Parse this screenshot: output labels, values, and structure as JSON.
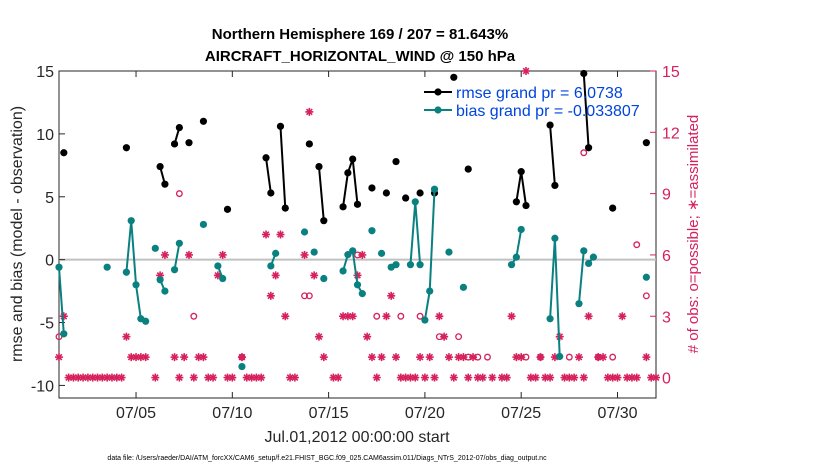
{
  "chart_data": {
    "type": "line",
    "title_line1": "Northern Hemisphere 169 / 207 = 81.643%",
    "title_line2": "AIRCRAFT_HORIZONTAL_WIND @ 150 hPa",
    "xlabel": "Jul.01,2012 00:00:00 start",
    "ylabel_left": "rmse and bias (model - observation)",
    "ylabel_right": "# of obs: o=possible; ∗=assimilated",
    "footnote": "data file: /Users/raeder/DAI/ATM_forcXX/CAM6_setup/f.e21.FHIST_BGC.f09_025.CAM6assim.011/Diags_NTrS_2012-07/obs_diag_output.nc",
    "xlim": [
      1,
      32
    ],
    "ylim_left": [
      -11,
      15
    ],
    "ylim_right": [
      -1,
      15
    ],
    "x_ticks": [
      5,
      10,
      15,
      20,
      25,
      30
    ],
    "x_tick_labels": [
      "07/05",
      "07/10",
      "07/15",
      "07/20",
      "07/25",
      "07/30"
    ],
    "y_left_ticks": [
      -10,
      -5,
      0,
      5,
      10,
      15
    ],
    "y_left_tick_labels": [
      "-10",
      "-5",
      "0",
      "5",
      "10",
      "15"
    ],
    "y_right_ticks": [
      0,
      3,
      6,
      9,
      12,
      15
    ],
    "y_right_tick_labels": [
      "0",
      "3",
      "6",
      "9",
      "12",
      "15"
    ],
    "legend": {
      "position": "top-right",
      "entries": [
        "rmse grand pr = 6.0738",
        "bias grand pr = -0.033807"
      ]
    },
    "colors": {
      "rmse": "#000000",
      "bias": "#0a8080",
      "obs": "#d6215c",
      "zero": "#c0c0c0"
    },
    "rmse_segments": [
      [
        [
          1.25,
          8.5
        ]
      ],
      [
        [
          4.5,
          8.9
        ]
      ],
      [
        [
          6.25,
          7.4
        ],
        [
          6.5,
          6.0
        ]
      ],
      [
        [
          7.0,
          9.2
        ],
        [
          7.25,
          10.5
        ]
      ],
      [
        [
          7.75,
          9.3
        ]
      ],
      [
        [
          8.5,
          11.0
        ]
      ],
      [
        [
          9.75,
          4.0
        ]
      ],
      [
        [
          11.75,
          8.1
        ],
        [
          12.0,
          5.3
        ]
      ],
      [
        [
          12.5,
          10.6
        ],
        [
          12.75,
          4.1
        ]
      ],
      [
        [
          14.0,
          9.2
        ]
      ],
      [
        [
          14.5,
          7.4
        ],
        [
          14.75,
          3.1
        ]
      ],
      [
        [
          15.75,
          4.2
        ],
        [
          16.0,
          6.9
        ],
        [
          16.25,
          8.0
        ],
        [
          16.5,
          4.4
        ]
      ],
      [
        [
          17.25,
          5.7
        ]
      ],
      [
        [
          18.0,
          5.3
        ]
      ],
      [
        [
          18.5,
          7.8
        ]
      ],
      [
        [
          19.0,
          4.9
        ]
      ],
      [
        [
          19.75,
          5.3
        ]
      ],
      [
        [
          20.5,
          5.3
        ]
      ],
      [
        [
          21.5,
          14.5
        ]
      ],
      [
        [
          22.25,
          7.2
        ]
      ],
      [
        [
          24.75,
          4.6
        ],
        [
          25.0,
          7.0
        ],
        [
          25.25,
          4.3
        ]
      ],
      [
        [
          26.5,
          10.7
        ],
        [
          26.75,
          5.9
        ]
      ],
      [
        [
          28.25,
          14.8
        ],
        [
          28.5,
          8.9
        ]
      ],
      [
        [
          29.75,
          4.1
        ]
      ],
      [
        [
          31.5,
          9.3
        ]
      ]
    ],
    "bias_segments": [
      [
        [
          1.0,
          -0.6
        ],
        [
          1.25,
          -5.9
        ]
      ],
      [
        [
          3.5,
          -0.6
        ]
      ],
      [
        [
          4.5,
          -1.0
        ],
        [
          4.75,
          3.1
        ],
        [
          5.0,
          -2.0
        ],
        [
          5.25,
          -4.7
        ]
      ],
      [
        [
          5.5,
          -4.9
        ]
      ],
      [
        [
          6.0,
          0.9
        ]
      ],
      [
        [
          6.25,
          -1.6
        ],
        [
          6.5,
          -2.5
        ]
      ],
      [
        [
          7.0,
          -0.8
        ],
        [
          7.25,
          1.3
        ]
      ],
      [
        [
          8.5,
          2.8
        ]
      ],
      [
        [
          9.25,
          -0.5
        ],
        [
          9.5,
          -1.5
        ]
      ],
      [
        [
          10.5,
          -8.5
        ]
      ],
      [
        [
          12.0,
          -0.5
        ],
        [
          12.25,
          0.5
        ]
      ],
      [
        [
          13.75,
          2.2
        ]
      ],
      [
        [
          14.25,
          0.6
        ]
      ],
      [
        [
          14.75,
          -1.5
        ]
      ],
      [
        [
          15.75,
          -0.9
        ],
        [
          16.0,
          0.4
        ],
        [
          16.25,
          0.7
        ],
        [
          16.5,
          -2.0
        ],
        [
          16.75,
          -2.7
        ]
      ],
      [
        [
          17.25,
          2.3
        ]
      ],
      [
        [
          17.75,
          0.5
        ]
      ],
      [
        [
          18.25,
          -0.6
        ],
        [
          18.5,
          -0.4
        ]
      ],
      [
        [
          19.25,
          -0.4
        ],
        [
          19.5,
          4.6
        ],
        [
          19.75,
          -0.4
        ]
      ],
      [
        [
          20.0,
          -4.8
        ],
        [
          20.25,
          -2.5
        ],
        [
          20.5,
          5.6
        ]
      ],
      [
        [
          21.25,
          0.6
        ]
      ],
      [
        [
          22.0,
          -2.2
        ]
      ],
      [
        [
          24.5,
          -0.4
        ],
        [
          24.75,
          0.2
        ],
        [
          25.0,
          2.4
        ]
      ],
      [
        [
          26.5,
          -4.7
        ],
        [
          26.75,
          1.7
        ],
        [
          27.0,
          -7.7
        ]
      ],
      [
        [
          28.0,
          -3.5
        ],
        [
          28.25,
          0.7
        ]
      ],
      [
        [
          28.5,
          -0.3
        ],
        [
          28.75,
          0.2
        ]
      ],
      [
        [
          31.5,
          -1.4
        ]
      ]
    ],
    "obs_assimilated": [
      [
        1.0,
        1
      ],
      [
        1.25,
        3
      ],
      [
        1.5,
        0
      ],
      [
        1.75,
        0
      ],
      [
        2.0,
        0
      ],
      [
        2.25,
        0
      ],
      [
        2.5,
        0
      ],
      [
        2.75,
        0
      ],
      [
        3.0,
        0
      ],
      [
        3.25,
        0
      ],
      [
        3.5,
        0
      ],
      [
        3.75,
        0
      ],
      [
        4.0,
        0
      ],
      [
        4.25,
        0
      ],
      [
        4.5,
        2
      ],
      [
        4.75,
        1
      ],
      [
        5.0,
        1
      ],
      [
        5.25,
        1
      ],
      [
        5.5,
        1
      ],
      [
        6.0,
        0
      ],
      [
        6.25,
        5
      ],
      [
        6.5,
        6
      ],
      [
        7.0,
        1
      ],
      [
        7.25,
        0
      ],
      [
        7.5,
        1
      ],
      [
        7.75,
        6
      ],
      [
        8.0,
        0
      ],
      [
        8.25,
        1
      ],
      [
        8.5,
        1
      ],
      [
        8.75,
        0
      ],
      [
        9.0,
        0
      ],
      [
        9.25,
        5
      ],
      [
        9.5,
        6
      ],
      [
        9.75,
        0
      ],
      [
        10.0,
        0
      ],
      [
        10.5,
        1
      ],
      [
        10.75,
        0
      ],
      [
        11.0,
        0
      ],
      [
        11.25,
        0
      ],
      [
        11.5,
        0
      ],
      [
        11.75,
        7
      ],
      [
        12.0,
        4
      ],
      [
        12.25,
        5
      ],
      [
        12.5,
        7
      ],
      [
        12.75,
        3
      ],
      [
        13.0,
        0
      ],
      [
        13.25,
        0
      ],
      [
        13.75,
        6
      ],
      [
        14.0,
        13
      ],
      [
        14.25,
        5
      ],
      [
        14.5,
        2
      ],
      [
        14.75,
        1
      ],
      [
        15.25,
        0
      ],
      [
        15.5,
        0
      ],
      [
        15.75,
        3
      ],
      [
        16.0,
        3
      ],
      [
        16.25,
        3
      ],
      [
        16.5,
        5
      ],
      [
        16.75,
        6
      ],
      [
        17.0,
        2
      ],
      [
        17.25,
        1
      ],
      [
        17.5,
        0
      ],
      [
        17.75,
        1
      ],
      [
        18.0,
        3
      ],
      [
        18.25,
        4
      ],
      [
        18.5,
        1
      ],
      [
        18.75,
        0
      ],
      [
        19.0,
        0
      ],
      [
        19.25,
        0
      ],
      [
        19.5,
        0
      ],
      [
        19.75,
        1
      ],
      [
        20.0,
        0
      ],
      [
        20.25,
        1
      ],
      [
        20.5,
        0
      ],
      [
        20.75,
        3
      ],
      [
        21.0,
        2
      ],
      [
        21.25,
        1
      ],
      [
        21.5,
        0
      ],
      [
        21.75,
        1
      ],
      [
        22.0,
        1
      ],
      [
        22.25,
        0
      ],
      [
        22.5,
        1
      ],
      [
        22.75,
        0
      ],
      [
        23.0,
        0
      ],
      [
        23.5,
        0
      ],
      [
        24.0,
        0
      ],
      [
        24.25,
        0
      ],
      [
        24.5,
        3
      ],
      [
        24.75,
        1
      ],
      [
        25.0,
        1
      ],
      [
        25.25,
        15
      ],
      [
        25.5,
        0
      ],
      [
        25.75,
        0
      ],
      [
        26.0,
        1
      ],
      [
        26.25,
        0
      ],
      [
        26.5,
        0
      ],
      [
        26.75,
        1
      ],
      [
        27.0,
        2
      ],
      [
        27.25,
        0
      ],
      [
        27.5,
        0
      ],
      [
        27.75,
        0
      ],
      [
        28.0,
        1
      ],
      [
        28.25,
        0
      ],
      [
        28.5,
        3
      ],
      [
        29.0,
        1
      ],
      [
        29.25,
        1
      ],
      [
        29.5,
        0
      ],
      [
        29.75,
        0
      ],
      [
        30.0,
        0
      ],
      [
        30.25,
        3
      ],
      [
        30.5,
        0
      ],
      [
        30.75,
        0
      ],
      [
        31.0,
        0
      ],
      [
        31.5,
        1
      ],
      [
        31.75,
        0
      ],
      [
        32.0,
        0
      ]
    ],
    "obs_possible": [
      [
        1.0,
        2
      ],
      [
        7.25,
        9
      ],
      [
        8.0,
        3
      ],
      [
        10.5,
        1
      ],
      [
        13.75,
        4
      ],
      [
        14.0,
        4
      ],
      [
        16.5,
        6
      ],
      [
        17.5,
        3
      ],
      [
        18.75,
        3
      ],
      [
        19.75,
        3
      ],
      [
        20.75,
        2
      ],
      [
        21.75,
        2
      ],
      [
        22.25,
        1
      ],
      [
        22.75,
        1
      ],
      [
        23.25,
        1
      ],
      [
        25.25,
        1
      ],
      [
        26.0,
        1
      ],
      [
        27.5,
        1
      ],
      [
        28.25,
        11
      ],
      [
        29.0,
        1
      ],
      [
        29.75,
        1
      ],
      [
        31.0,
        6.5
      ],
      [
        31.5,
        4
      ]
    ]
  }
}
